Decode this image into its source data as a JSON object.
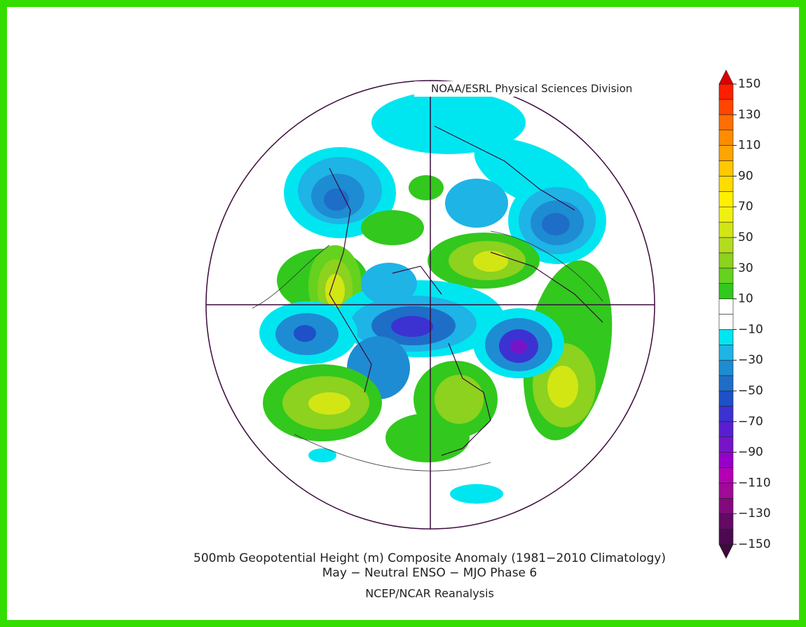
{
  "credit": "NOAA/ESRL Physical Sciences Division",
  "title": [
    "500mb Geopotential Height (m) Composite Anomaly (1981−2010 Climatology)",
    "May − Neutral ENSO − MJO Phase 6",
    "NCEP/NCAR Reanalysis"
  ],
  "colorbar": {
    "lim": [
      -150,
      150
    ],
    "ticks": [
      150,
      130,
      110,
      90,
      70,
      50,
      30,
      10,
      {
        "value": -10,
        "label": "−10"
      },
      {
        "value": -30,
        "label": "−30"
      },
      {
        "value": -50,
        "label": "−50"
      },
      {
        "value": -70,
        "label": "−70"
      },
      {
        "value": -90,
        "label": "−90"
      },
      {
        "value": -110,
        "label": "−110"
      },
      {
        "value": -130,
        "label": "−130"
      },
      {
        "value": -150,
        "label": "−150"
      }
    ],
    "bin_colors": [
      "#4b0a50",
      "#640a64",
      "#820a7d",
      "#a00a96",
      "#b400b4",
      "#9600c8",
      "#7814c8",
      "#5a1ed2",
      "#3c32d2",
      "#1e50c8",
      "#1e6ec8",
      "#1e8cd2",
      "#1eb4e6",
      "#00e6f0",
      "#ffffff",
      "#ffffff",
      "#32c81e",
      "#64d21e",
      "#8cd21e",
      "#b4dc1e",
      "#d2e614",
      "#f0f014",
      "#fff000",
      "#ffdc00",
      "#ffc800",
      "#ffa500",
      "#ff8c00",
      "#ff6e00",
      "#ff4600",
      "#ff1e00"
    ],
    "under_color": "#3c0a3c",
    "over_color": "#dc0000"
  }
}
